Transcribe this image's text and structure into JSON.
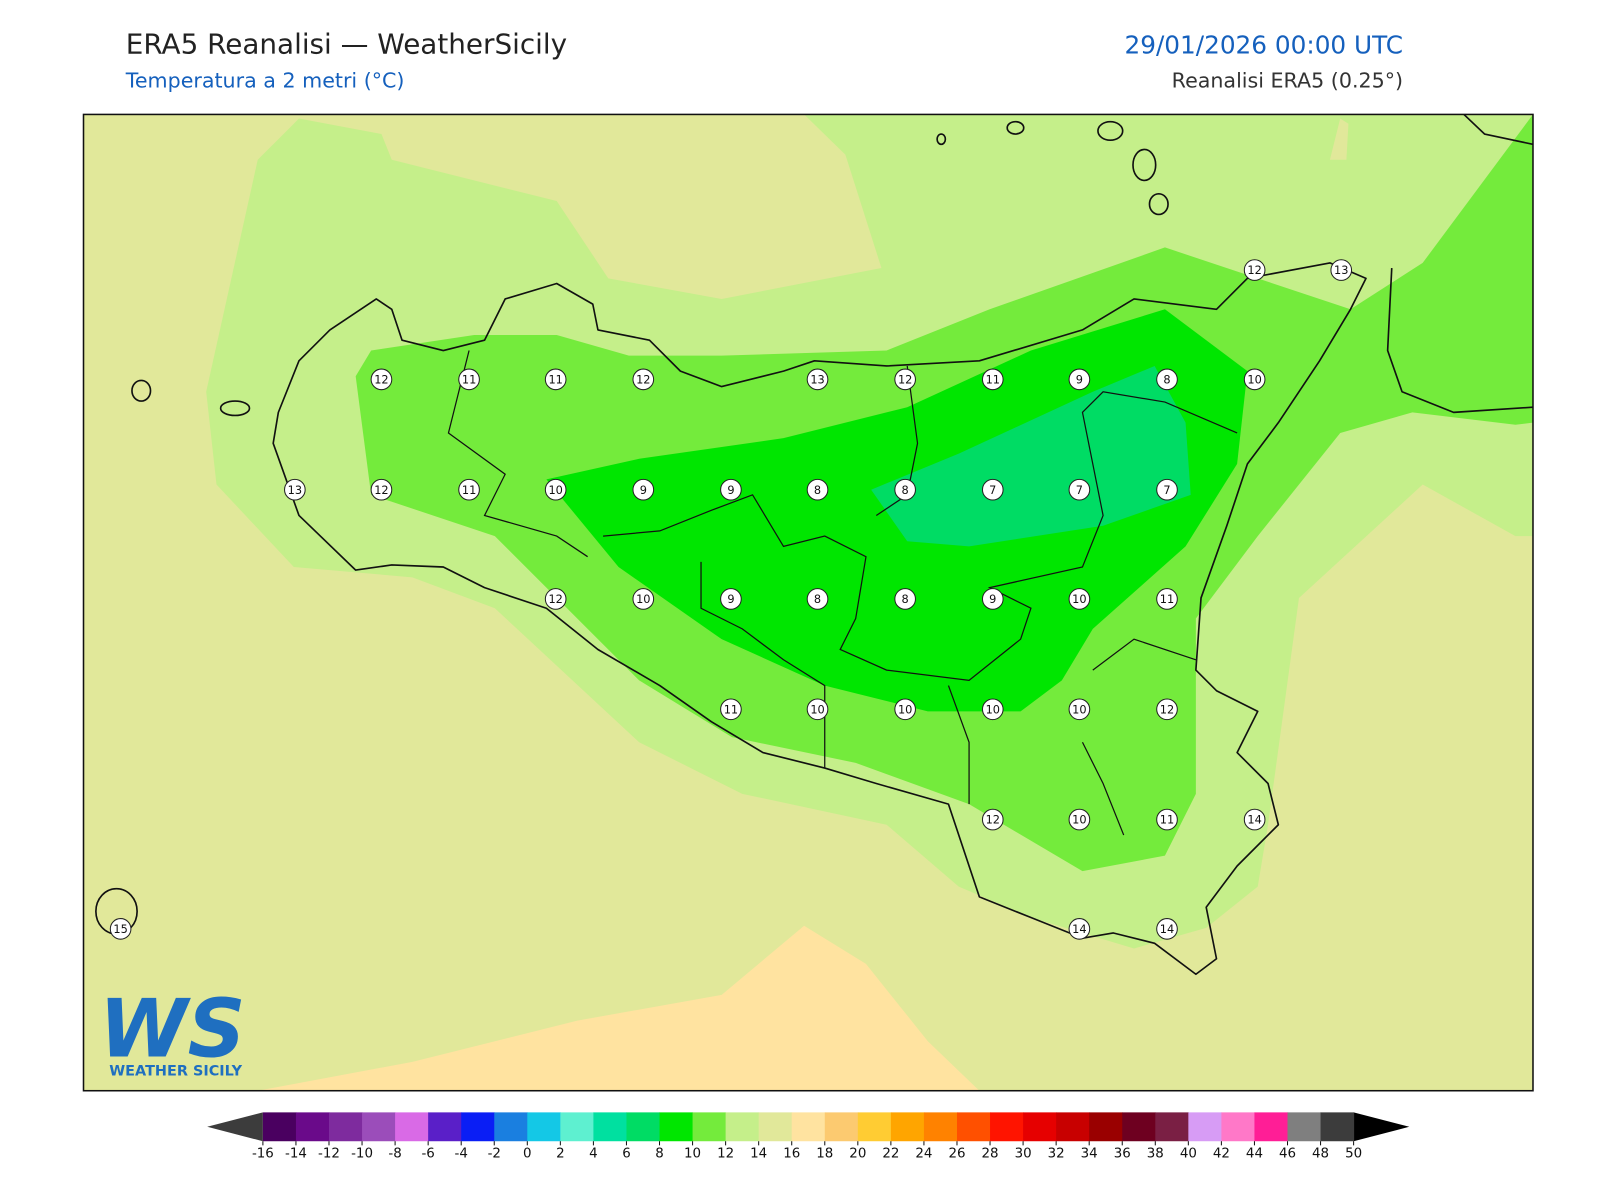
{
  "header": {
    "title": "ERA5 Reanalisi — WeatherSicily",
    "subtitle": "Temperatura a 2 metri (°C)",
    "datetime": "29/01/2026 00:00 UTC",
    "source": "Reanalisi ERA5 (0.25°)"
  },
  "map": {
    "stations": [
      12,
      13,
      12,
      11,
      11,
      12,
      13,
      12,
      11,
      9,
      8,
      10,
      13,
      12,
      11,
      10,
      9,
      9,
      8,
      8,
      7,
      7,
      7,
      12,
      10,
      9,
      8,
      8,
      9,
      10,
      11,
      11,
      10,
      10,
      10,
      10,
      12,
      12,
      10,
      11,
      14,
      15,
      14,
      14
    ]
  },
  "colorbar": {
    "ticks": [
      -16,
      -14,
      -12,
      -10,
      -8,
      -6,
      -4,
      -2,
      0,
      2,
      4,
      6,
      8,
      10,
      12,
      14,
      16,
      18,
      20,
      22,
      24,
      26,
      28,
      30,
      32,
      34,
      36,
      38,
      40,
      42,
      44,
      46,
      48,
      50
    ],
    "colors": [
      "#4a0060",
      "#6a0a8a",
      "#7e2b9e",
      "#9b4dba",
      "#d96ae6",
      "#5a1fc8",
      "#0a1ef5",
      "#1a7fe0",
      "#14c8e6",
      "#5ef0d0",
      "#00e0a0",
      "#00dc64",
      "#00e600",
      "#74eb3c",
      "#c5ef8a",
      "#e1e89a",
      "#ffe3a0",
      "#fcca70",
      "#ffcc33",
      "#ffa500",
      "#ff8200",
      "#ff5000",
      "#ff1400",
      "#e60000",
      "#c80000",
      "#9a0000",
      "#6e0020",
      "#7a1f44",
      "#d79cf5",
      "#ff78c8",
      "#ff1e96",
      "#7f7f7f",
      "#3c3c3c"
    ]
  },
  "logo": {
    "mark": "WS",
    "name": "WEATHER SICILY"
  }
}
